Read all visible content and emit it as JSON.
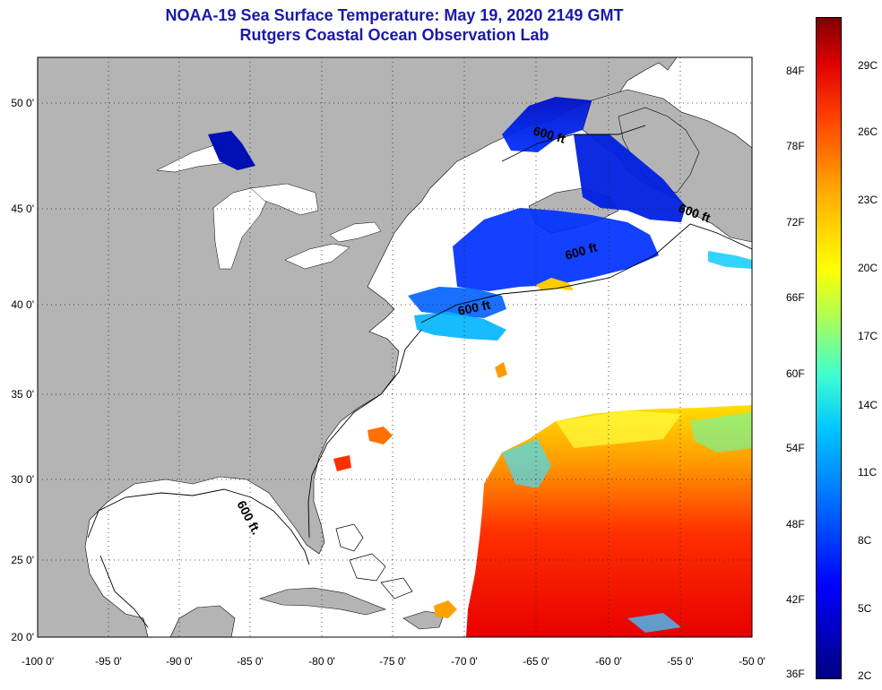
{
  "title_line1": "NOAA-19 Sea Surface Temperature:  May 19, 2020 2149 GMT",
  "title_line2": "Rutgers Coastal Ocean Observation Lab",
  "map": {
    "lon_labels": [
      "-100 0'",
      "-95 0'",
      "-90 0'",
      "-85 0'",
      "-80 0'",
      "-75 0'",
      "-70 0'",
      "-65 0'",
      "-60 0'",
      "-55 0'",
      "-50 0'"
    ],
    "lat_labels": [
      "50 0'",
      "45 0'",
      "40 0'",
      "35 0'",
      "30 0'",
      "25 0'",
      "20 0'"
    ],
    "contour_labels": [
      "600 ft.",
      "600 ft",
      "600 ft",
      "600 ft",
      "600 ft"
    ],
    "colors": {
      "land": "#b4b4b4",
      "ocean_no_data": "#ffffff",
      "title": "#1a1aa8"
    }
  },
  "colorbar": {
    "f_labels": [
      "84F",
      "78F",
      "72F",
      "66F",
      "60F",
      "54F",
      "48F",
      "42F",
      "36F"
    ],
    "c_labels": [
      "29C",
      "26C",
      "23C",
      "20C",
      "17C",
      "14C",
      "11C",
      "8C",
      "5C",
      "2C"
    ]
  }
}
